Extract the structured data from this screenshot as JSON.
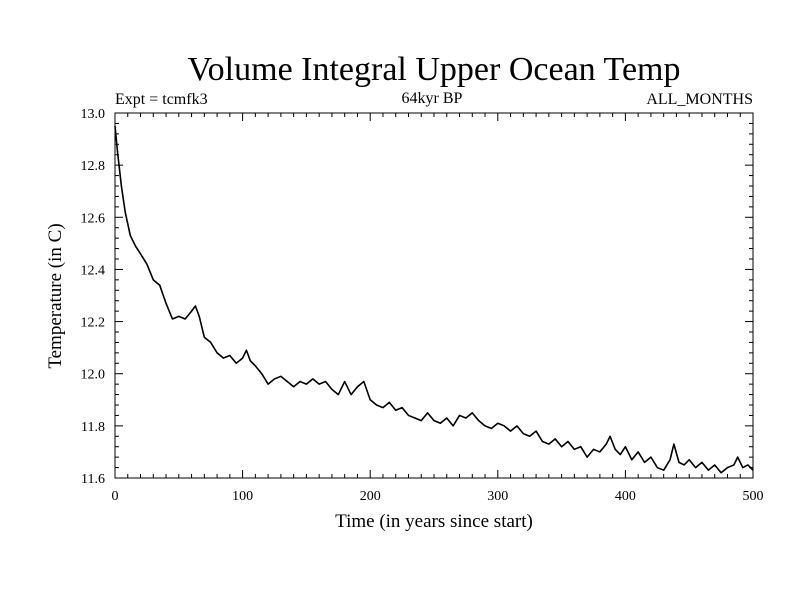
{
  "chart_data": {
    "type": "line",
    "title": "Volume Integral Upper Ocean Temp",
    "subtitle_left": "Expt = tcmfk3",
    "subtitle_center": "64kyr BP",
    "subtitle_right": "ALL_MONTHS",
    "xlabel": "Time (in years since start)",
    "ylabel": "Temperature (in C)",
    "xlim": [
      0,
      500
    ],
    "ylim": [
      11.6,
      13.0
    ],
    "xticks": [
      0,
      100,
      200,
      300,
      400,
      500
    ],
    "yticks": [
      11.6,
      11.8,
      12.0,
      12.2,
      12.4,
      12.6,
      12.8,
      13.0
    ],
    "xtick_labels": [
      "0",
      "100",
      "200",
      "300",
      "400",
      "500"
    ],
    "ytick_labels": [
      "11.6",
      "11.8",
      "12.0",
      "12.2",
      "12.4",
      "12.6",
      "12.8",
      "13.0"
    ],
    "grid": false,
    "series": [
      {
        "color": "#000000",
        "x": [
          0,
          2,
          5,
          8,
          12,
          16,
          20,
          25,
          30,
          35,
          40,
          45,
          50,
          55,
          60,
          63,
          66,
          70,
          75,
          80,
          85,
          90,
          95,
          100,
          103,
          106,
          110,
          115,
          120,
          125,
          130,
          135,
          140,
          145,
          150,
          155,
          160,
          165,
          170,
          175,
          180,
          185,
          190,
          195,
          200,
          205,
          210,
          215,
          220,
          225,
          230,
          235,
          240,
          245,
          250,
          255,
          260,
          265,
          270,
          275,
          280,
          285,
          290,
          295,
          300,
          305,
          310,
          315,
          320,
          325,
          330,
          335,
          340,
          345,
          350,
          355,
          360,
          365,
          370,
          375,
          380,
          385,
          388,
          392,
          396,
          400,
          405,
          410,
          415,
          420,
          425,
          430,
          435,
          438,
          442,
          446,
          450,
          455,
          460,
          465,
          470,
          475,
          480,
          485,
          488,
          492,
          496,
          500
        ],
        "y": [
          12.95,
          12.85,
          12.72,
          12.62,
          12.53,
          12.49,
          12.46,
          12.42,
          12.36,
          12.34,
          12.27,
          12.21,
          12.22,
          12.21,
          12.24,
          12.26,
          12.22,
          12.14,
          12.12,
          12.08,
          12.06,
          12.07,
          12.04,
          12.06,
          12.09,
          12.05,
          12.03,
          12.0,
          11.96,
          11.98,
          11.99,
          11.97,
          11.95,
          11.97,
          11.96,
          11.98,
          11.96,
          11.97,
          11.94,
          11.92,
          11.97,
          11.92,
          11.95,
          11.97,
          11.9,
          11.88,
          11.87,
          11.89,
          11.86,
          11.87,
          11.84,
          11.83,
          11.82,
          11.85,
          11.82,
          11.81,
          11.83,
          11.8,
          11.84,
          11.83,
          11.85,
          11.82,
          11.8,
          11.79,
          11.81,
          11.8,
          11.78,
          11.8,
          11.77,
          11.76,
          11.78,
          11.74,
          11.73,
          11.75,
          11.72,
          11.74,
          11.71,
          11.72,
          11.68,
          11.71,
          11.7,
          11.73,
          11.76,
          11.71,
          11.69,
          11.72,
          11.67,
          11.7,
          11.66,
          11.68,
          11.64,
          11.63,
          11.67,
          11.73,
          11.66,
          11.65,
          11.67,
          11.64,
          11.66,
          11.63,
          11.65,
          11.62,
          11.64,
          11.65,
          11.68,
          11.64,
          11.65,
          11.63
        ]
      }
    ]
  }
}
